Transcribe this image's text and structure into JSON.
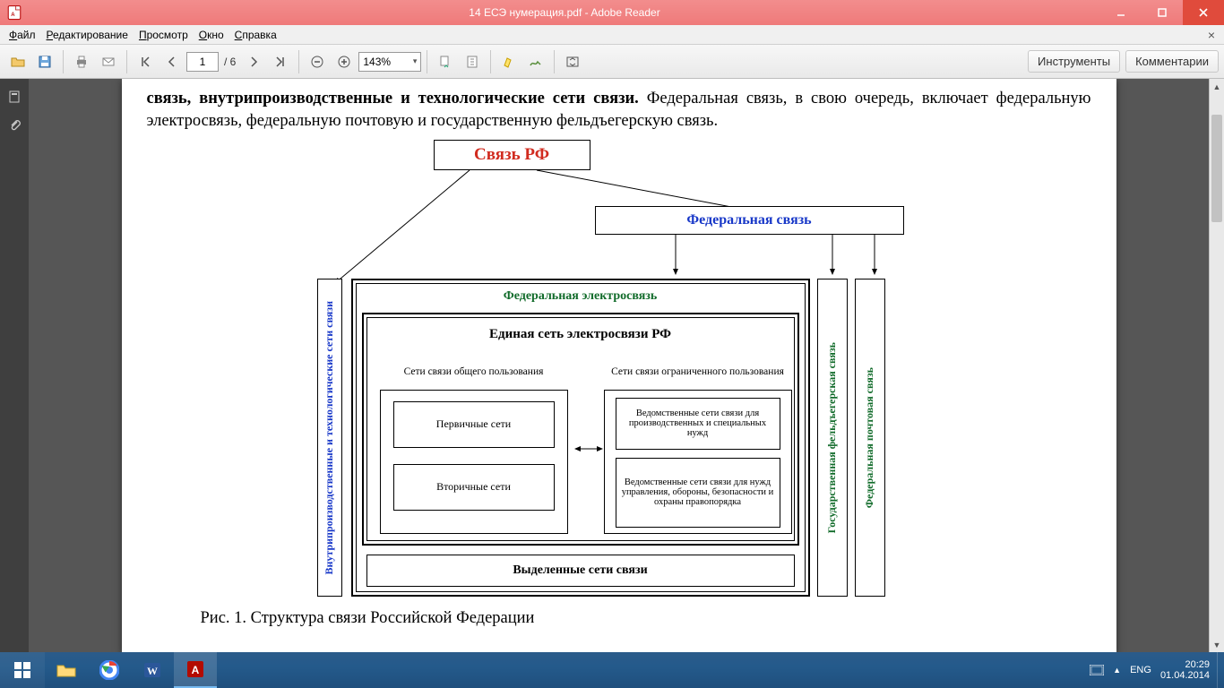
{
  "window": {
    "title": "14 ЕСЭ нумерация.pdf - Adobe Reader",
    "menubar": [
      "Файл",
      "Редактирование",
      "Просмотр",
      "Окно",
      "Справка"
    ]
  },
  "toolbar": {
    "page_current": "1",
    "page_total": "/ 6",
    "zoom": "143%",
    "right_links": [
      "Инструменты",
      "Комментарии"
    ]
  },
  "document": {
    "para_bold": "связь, внутрипроизводственные и технологические сети связи.",
    "para_rest": " Федеральная связь, в свою очередь, включает федеральную электросвязь, федеральную почтовую и государственную фельдъегерскую связь.",
    "caption": "Рис. 1. Структура связи Российской Федерации"
  },
  "diagram": {
    "root": {
      "text": "Связь РФ",
      "color": "#d12b1f",
      "fontsize": 19
    },
    "fed": {
      "text": "Федеральная связь",
      "color": "#1838c8",
      "fontsize": 16
    },
    "fed_electro": {
      "text": "Федеральная электросвязь",
      "color": "#116b2a",
      "fontsize": 14
    },
    "unified": {
      "text": "Единая сеть электросвязи РФ",
      "color": "#000",
      "fontsize": 15
    },
    "public": {
      "text": "Сети связи общего пользования"
    },
    "restricted": {
      "text": "Сети связи ограниченного пользования"
    },
    "primary": {
      "text": "Первичные сети"
    },
    "secondary": {
      "text": "Вторичные сети"
    },
    "dept1": {
      "text": "Ведомственные сети связи для производственных и специальных нужд"
    },
    "dept2": {
      "text": "Ведомственные сети связи для нужд управления, обороны, безопасности и охраны правопорядка"
    },
    "dedicated": {
      "text": "Выделенные сети связи"
    },
    "vleft": {
      "text": "Внутрипроизводственные и технологические сети связи",
      "color": "#1838c8"
    },
    "vgov": {
      "text": "Государственная фельдъегерская связь",
      "color": "#116b2a"
    },
    "vpost": {
      "text": "Федеральная почтовая связь",
      "color": "#116b2a"
    },
    "box_small_fontsize": 11,
    "box_border": "#000000",
    "arrow_color": "#000000"
  },
  "taskbar": {
    "tray_flag": "▲",
    "lang": "ENG",
    "time": "20:29",
    "date": "01.04.2014"
  }
}
